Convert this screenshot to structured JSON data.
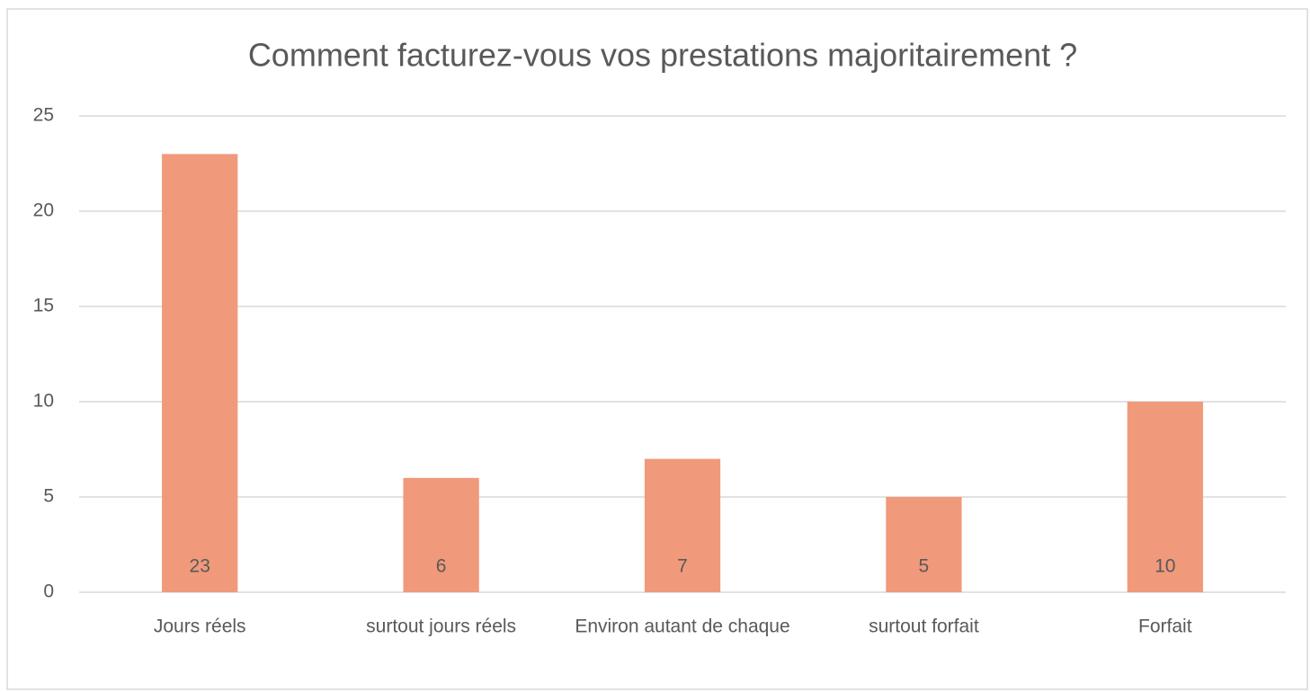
{
  "chart_data": {
    "type": "bar",
    "title": "Comment facturez-vous vos prestations majoritairement ?",
    "categories": [
      "Jours réels",
      "surtout jours réels",
      "Environ autant de chaque",
      "surtout forfait",
      "Forfait"
    ],
    "values": [
      23,
      6,
      7,
      5,
      10
    ],
    "color": "#f1997b",
    "ylim": [
      0,
      25
    ],
    "yticks": [
      0,
      5,
      10,
      15,
      20,
      25
    ],
    "grid": true
  }
}
